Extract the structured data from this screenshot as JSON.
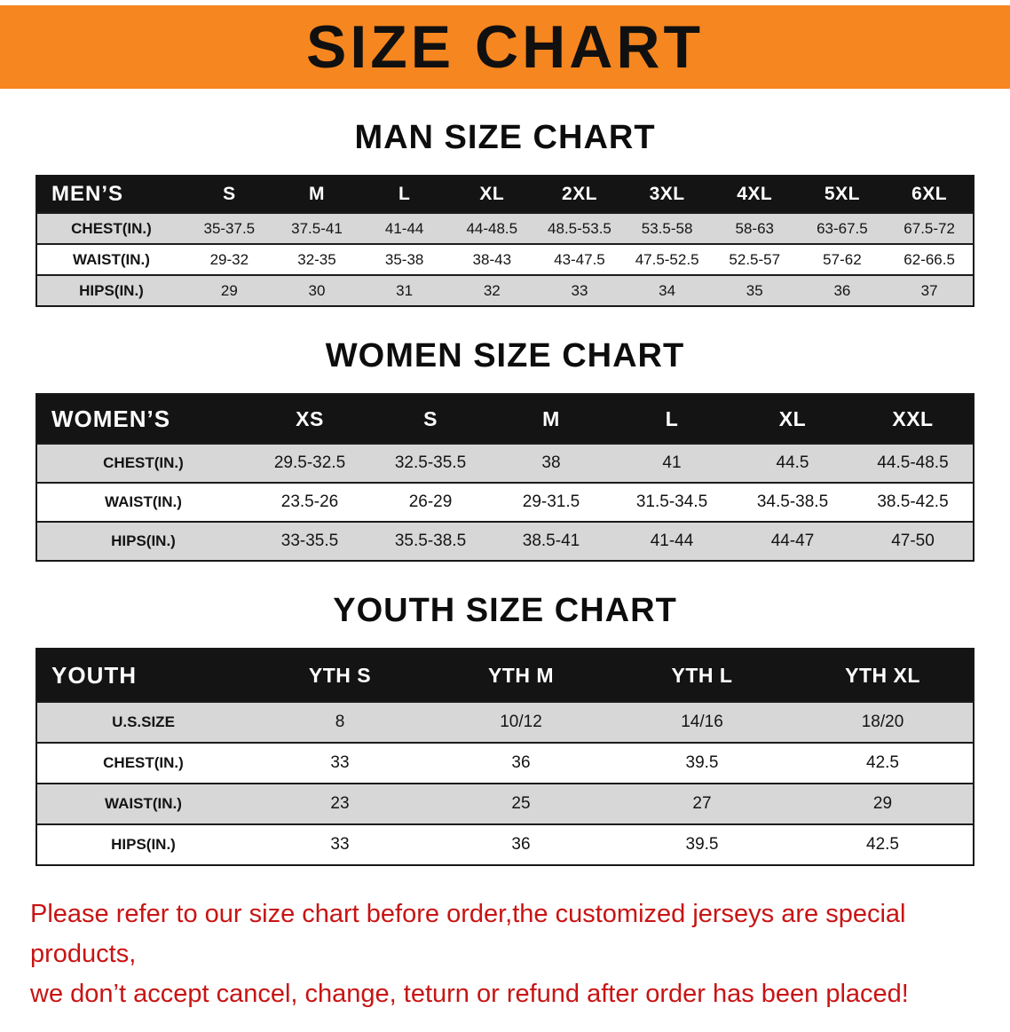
{
  "banner": {
    "title": "SIZE CHART"
  },
  "sections": [
    {
      "id": "men",
      "heading": "MAN SIZE CHART",
      "table": {
        "header": [
          "MEN’S",
          "S",
          "M",
          "L",
          "XL",
          "2XL",
          "3XL",
          "4XL",
          "5XL",
          "6XL"
        ],
        "rows": [
          [
            "CHEST(IN.)",
            "35-37.5",
            "37.5-41",
            "41-44",
            "44-48.5",
            "48.5-53.5",
            "53.5-58",
            "58-63",
            "63-67.5",
            "67.5-72"
          ],
          [
            "WAIST(IN.)",
            "29-32",
            "32-35",
            "35-38",
            "38-43",
            "43-47.5",
            "47.5-52.5",
            "52.5-57",
            "57-62",
            "62-66.5"
          ],
          [
            "HIPS(IN.)",
            "29",
            "30",
            "31",
            "32",
            "33",
            "34",
            "35",
            "36",
            "37"
          ]
        ]
      }
    },
    {
      "id": "women",
      "heading": "WOMEN SIZE CHART",
      "table": {
        "header": [
          "WOMEN’S",
          "XS",
          "S",
          "M",
          "L",
          "XL",
          "XXL"
        ],
        "rows": [
          [
            "CHEST(IN.)",
            "29.5-32.5",
            "32.5-35.5",
            "38",
            "41",
            "44.5",
            "44.5-48.5"
          ],
          [
            "WAIST(IN.)",
            "23.5-26",
            "26-29",
            "29-31.5",
            "31.5-34.5",
            "34.5-38.5",
            "38.5-42.5"
          ],
          [
            "HIPS(IN.)",
            "33-35.5",
            "35.5-38.5",
            "38.5-41",
            "41-44",
            "44-47",
            "47-50"
          ]
        ]
      }
    },
    {
      "id": "youth",
      "heading": "YOUTH SIZE CHART",
      "table": {
        "header": [
          "YOUTH",
          "YTH S",
          "YTH M",
          "YTH L",
          "YTH XL"
        ],
        "rows": [
          [
            "U.S.SIZE",
            "8",
            "10/12",
            "14/16",
            "18/20"
          ],
          [
            "CHEST(IN.)",
            "33",
            "36",
            "39.5",
            "42.5"
          ],
          [
            "WAIST(IN.)",
            "23",
            "25",
            "27",
            "29"
          ],
          [
            "HIPS(IN.)",
            "33",
            "36",
            "39.5",
            "42.5"
          ]
        ]
      }
    }
  ],
  "footer": {
    "line1": "Please refer to our size chart before order,the customized jerseys are special products,",
    "line2": "we don’t accept cancel, change, teturn or refund after order has been placed!"
  },
  "colors": {
    "banner_orange": "#f6861f",
    "table_header_black": "#141414",
    "row_gray": "#d7d7d7",
    "note_red": "#c81414"
  }
}
